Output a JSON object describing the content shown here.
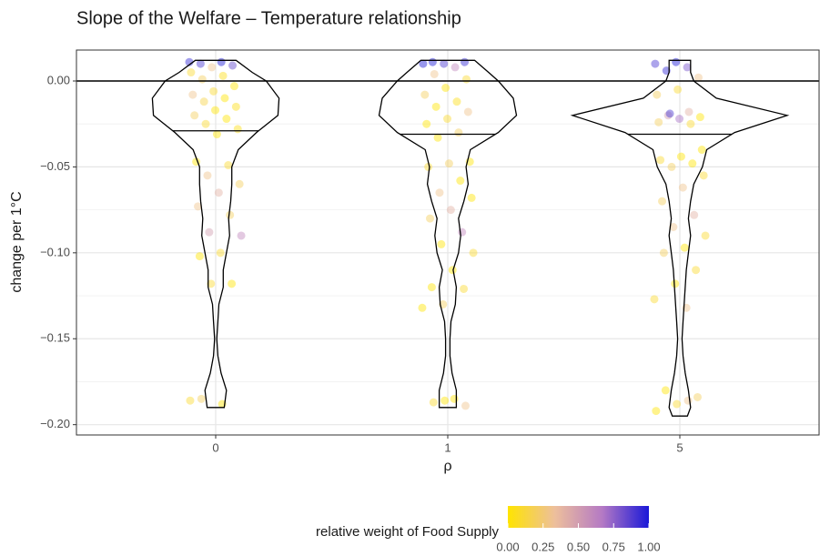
{
  "chart_data": {
    "type": "violin",
    "title": "Slope of the Welfare – Temperature relationship",
    "x_label": "ρ",
    "y_label": "change per 1°C",
    "categories": [
      "0",
      "1",
      "5"
    ],
    "ylim": [
      -0.206,
      0.018
    ],
    "yticks": [
      {
        "value": -0.2,
        "label": "−0.20"
      },
      {
        "value": -0.15,
        "label": "−0.15"
      },
      {
        "value": -0.1,
        "label": "−0.10"
      },
      {
        "value": -0.05,
        "label": "−0.05"
      },
      {
        "value": 0,
        "label": "0.00"
      }
    ],
    "minor_yticks": [
      -0.175,
      -0.125,
      -0.075,
      -0.025
    ],
    "grid": true,
    "hline": 0,
    "medians": [
      -0.029,
      -0.031,
      -0.031
    ],
    "violins": [
      {
        "y": [
          0.012,
          0.005,
          0,
          -0.01,
          -0.02,
          -0.03,
          -0.04,
          -0.05,
          -0.06,
          -0.07,
          -0.08,
          -0.09,
          -0.1,
          -0.11,
          -0.12,
          -0.13,
          -0.14,
          -0.15,
          -0.16,
          -0.17,
          -0.18,
          -0.19
        ],
        "density": [
          0.19,
          0.34,
          0.47,
          0.59,
          0.58,
          0.38,
          0.21,
          0.15,
          0.15,
          0.14,
          0.12,
          0.13,
          0.1,
          0.07,
          0.07,
          0.03,
          0.02,
          0.01,
          0.02,
          0.05,
          0.1,
          0.08
        ]
      },
      {
        "y": [
          0.012,
          0.005,
          0,
          -0.01,
          -0.02,
          -0.03,
          -0.04,
          -0.05,
          -0.06,
          -0.07,
          -0.08,
          -0.09,
          -0.1,
          -0.11,
          -0.12,
          -0.13,
          -0.14,
          -0.15,
          -0.16,
          -0.17,
          -0.18,
          -0.19
        ],
        "density": [
          0.25,
          0.38,
          0.47,
          0.61,
          0.64,
          0.47,
          0.21,
          0.17,
          0.19,
          0.15,
          0.1,
          0.12,
          0.1,
          0.05,
          0.08,
          0.07,
          0.03,
          0.02,
          0.02,
          0.04,
          0.08,
          0.08
        ]
      },
      {
        "y": [
          0.012,
          0.005,
          0,
          -0.01,
          -0.02,
          -0.03,
          -0.04,
          -0.05,
          -0.06,
          -0.07,
          -0.08,
          -0.09,
          -0.1,
          -0.11,
          -0.12,
          -0.13,
          -0.14,
          -0.15,
          -0.16,
          -0.17,
          -0.18,
          -0.19,
          -0.195
        ],
        "density": [
          0.1,
          0.1,
          0.13,
          0.34,
          1.0,
          0.51,
          0.25,
          0.21,
          0.13,
          0.1,
          0.08,
          0.1,
          0.08,
          0.06,
          0.05,
          0.04,
          0.03,
          0.02,
          0.03,
          0.05,
          0.08,
          0.1,
          0.07
        ]
      }
    ],
    "points": [
      {
        "y": [
          0.011,
          0.011,
          0.01,
          0.009,
          0.008,
          0.005,
          0.003,
          0.001,
          -0.003,
          -0.006,
          -0.008,
          -0.01,
          -0.012,
          -0.015,
          -0.017,
          -0.02,
          -0.022,
          -0.025,
          -0.028,
          -0.031,
          -0.047,
          -0.049,
          -0.055,
          -0.06,
          -0.065,
          -0.073,
          -0.078,
          -0.088,
          -0.09,
          -0.1,
          -0.102,
          -0.118,
          -0.118,
          -0.186,
          -0.188,
          -0.185
        ],
        "weight": [
          0.95,
          1.0,
          0.9,
          0.85,
          0.3,
          0.1,
          0.05,
          0.2,
          0,
          0.1,
          0.3,
          0,
          0.15,
          0.05,
          0,
          0.2,
          0,
          0.1,
          0.05,
          0,
          0,
          0.1,
          0.3,
          0.2,
          0.4,
          0.3,
          0.2,
          0.5,
          0.6,
          0.1,
          0,
          0,
          0.1,
          0.1,
          0,
          0.2
        ]
      },
      {
        "y": [
          0.011,
          0.011,
          0.01,
          0.01,
          0.008,
          0.004,
          0.001,
          -0.004,
          -0.008,
          -0.012,
          -0.015,
          -0.018,
          -0.022,
          -0.025,
          -0.03,
          -0.033,
          -0.047,
          -0.048,
          -0.05,
          -0.058,
          -0.065,
          -0.068,
          -0.075,
          -0.08,
          -0.088,
          -0.095,
          -0.1,
          -0.11,
          -0.12,
          -0.121,
          -0.13,
          -0.132,
          -0.185,
          -0.187,
          -0.189,
          -0.186
        ],
        "weight": [
          1,
          0.95,
          0.9,
          1,
          0.6,
          0.3,
          0.1,
          0,
          0.2,
          0.05,
          0,
          0.3,
          0.1,
          0,
          0.2,
          0,
          0,
          0.2,
          0.1,
          0,
          0.3,
          0,
          0.4,
          0.2,
          0.6,
          0,
          0.1,
          0,
          0,
          0.1,
          0.2,
          0,
          0,
          0.1,
          0.3,
          0
        ]
      },
      {
        "y": [
          0.011,
          0.01,
          0.008,
          0.006,
          0.002,
          -0.005,
          -0.008,
          -0.018,
          -0.02,
          -0.021,
          -0.022,
          -0.024,
          -0.025,
          -0.019,
          -0.04,
          -0.044,
          -0.046,
          -0.048,
          -0.05,
          -0.055,
          -0.062,
          -0.07,
          -0.078,
          -0.085,
          -0.09,
          -0.097,
          -0.1,
          -0.11,
          -0.118,
          -0.127,
          -0.132,
          -0.18,
          -0.184,
          -0.188,
          -0.192,
          -0.186
        ],
        "weight": [
          1,
          0.9,
          0.8,
          0.95,
          0.3,
          0.1,
          0.2,
          0.4,
          0.5,
          0,
          0.7,
          0.2,
          0.1,
          0.9,
          0,
          0,
          0.1,
          0,
          0.2,
          0.1,
          0.3,
          0.2,
          0.4,
          0.3,
          0.1,
          0,
          0.2,
          0.1,
          0,
          0.1,
          0.3,
          0,
          0.2,
          0.1,
          0,
          0.3
        ]
      }
    ],
    "color_scale": {
      "title": "relative weight of Food Supply",
      "colors": [
        "#ffe400",
        "#edbf9c",
        "#b57ac4",
        "#1a18d8"
      ],
      "lim": [
        0,
        1
      ],
      "ticks": [
        {
          "value": 0,
          "label": "0.00"
        },
        {
          "value": 0.25,
          "label": "0.25"
        },
        {
          "value": 0.5,
          "label": "0.50"
        },
        {
          "value": 0.75,
          "label": "0.75"
        },
        {
          "value": 1,
          "label": "1.00"
        }
      ]
    }
  }
}
